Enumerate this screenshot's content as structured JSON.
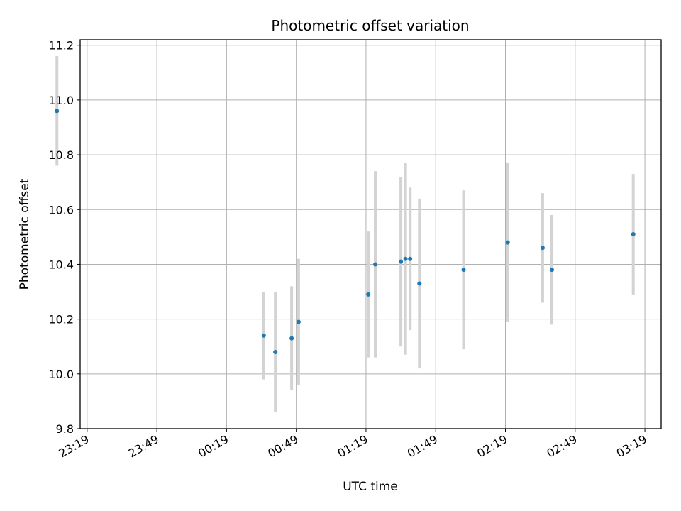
{
  "chart_data": {
    "type": "scatter",
    "title": "Photometric offset variation",
    "xlabel": "UTC time",
    "ylabel": "Photometric offset",
    "y_ticks": [
      9.8,
      10.0,
      10.2,
      10.4,
      10.6,
      10.8,
      11.0,
      11.2
    ],
    "y_tick_labels": [
      "9.8",
      "10.0",
      "10.2",
      "10.4",
      "10.6",
      "10.8",
      "11.0",
      "11.2"
    ],
    "ylim": [
      9.8,
      11.22
    ],
    "x_tick_labels": [
      "23:19",
      "23:49",
      "00:19",
      "00:49",
      "01:19",
      "01:49",
      "02:19",
      "02:49",
      "03:19"
    ],
    "x_ticks": [
      "23:19",
      "23:49",
      "00:19",
      "00:49",
      "01:19",
      "01:49",
      "02:19",
      "02:49",
      "03:19"
    ],
    "xlim": [
      "23:16",
      "03:26"
    ],
    "grid": true,
    "marker_color": "#1f77b4",
    "errorbar_color": "#d3d3d3",
    "points": [
      {
        "x": "23:06",
        "y": 10.96,
        "err": 0.2
      },
      {
        "x": "00:35",
        "y": 10.14,
        "err": 0.16
      },
      {
        "x": "00:40",
        "y": 10.08,
        "err": 0.22
      },
      {
        "x": "00:47",
        "y": 10.13,
        "err": 0.19
      },
      {
        "x": "00:50",
        "y": 10.19,
        "err": 0.23
      },
      {
        "x": "01:20",
        "y": 10.29,
        "err": 0.23
      },
      {
        "x": "01:23",
        "y": 10.4,
        "err": 0.34
      },
      {
        "x": "01:34",
        "y": 10.41,
        "err": 0.31
      },
      {
        "x": "01:36",
        "y": 10.42,
        "err": 0.35
      },
      {
        "x": "01:38",
        "y": 10.42,
        "err": 0.26
      },
      {
        "x": "01:42",
        "y": 10.33,
        "err": 0.31
      },
      {
        "x": "02:01",
        "y": 10.38,
        "err": 0.29
      },
      {
        "x": "02:20",
        "y": 10.48,
        "err": 0.29
      },
      {
        "x": "02:35",
        "y": 10.46,
        "err": 0.2
      },
      {
        "x": "02:39",
        "y": 10.38,
        "err": 0.2
      },
      {
        "x": "03:14",
        "y": 10.51,
        "err": 0.22
      }
    ]
  }
}
